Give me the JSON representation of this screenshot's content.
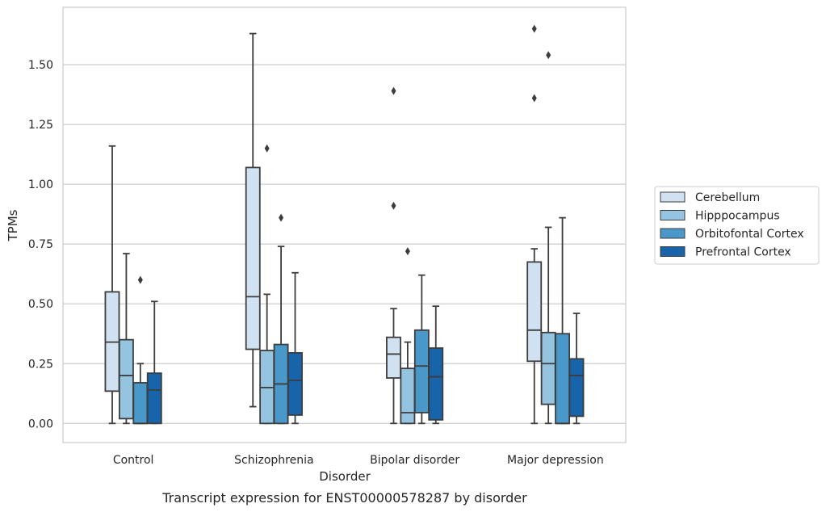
{
  "caption": "Transcript expression for ENST00000578287 by disorder",
  "chart_data": {
    "type": "boxplot",
    "xlabel": "Disorder",
    "ylabel": "TPMs",
    "ylim": [
      -0.08,
      1.74
    ],
    "yticks": [
      0.0,
      0.25,
      0.5,
      0.75,
      1.0,
      1.25,
      1.5
    ],
    "ytick_labels": [
      "0.00",
      "0.25",
      "0.50",
      "0.75",
      "1.00",
      "1.25",
      "1.50"
    ],
    "grid": "horizontal",
    "legend_position": "right",
    "categories": [
      "Control",
      "Schizophrenia",
      "Bipolar disorder",
      "Major depression"
    ],
    "series": [
      {
        "name": "Cerebellum",
        "color": "#d0e1f2",
        "boxes": [
          {
            "whislo": 0.0,
            "q1": 0.135,
            "med": 0.34,
            "q3": 0.55,
            "whishi": 1.16,
            "fliers": []
          },
          {
            "whislo": 0.07,
            "q1": 0.31,
            "med": 0.53,
            "q3": 1.07,
            "whishi": 1.63,
            "fliers": []
          },
          {
            "whislo": 0.0,
            "q1": 0.19,
            "med": 0.29,
            "q3": 0.36,
            "whishi": 0.48,
            "fliers": [
              0.91,
              1.39
            ]
          },
          {
            "whislo": 0.0,
            "q1": 0.26,
            "med": 0.39,
            "q3": 0.675,
            "whishi": 0.73,
            "fliers": [
              1.36,
              1.65
            ]
          }
        ]
      },
      {
        "name": "Hipppocampus",
        "color": "#94c4df",
        "boxes": [
          {
            "whislo": 0.0,
            "q1": 0.02,
            "med": 0.2,
            "q3": 0.35,
            "whishi": 0.71,
            "fliers": []
          },
          {
            "whislo": 0.0,
            "q1": 0.0,
            "med": 0.15,
            "q3": 0.305,
            "whishi": 0.54,
            "fliers": [
              1.15
            ]
          },
          {
            "whislo": 0.0,
            "q1": 0.0,
            "med": 0.045,
            "q3": 0.23,
            "whishi": 0.34,
            "fliers": [
              0.72
            ]
          },
          {
            "whislo": 0.0,
            "q1": 0.08,
            "med": 0.25,
            "q3": 0.38,
            "whishi": 0.82,
            "fliers": [
              1.54
            ]
          }
        ]
      },
      {
        "name": "Orbitofontal Cortex",
        "color": "#4a98c9",
        "boxes": [
          {
            "whislo": 0.0,
            "q1": 0.0,
            "med": 0.0,
            "q3": 0.17,
            "whishi": 0.25,
            "fliers": [
              0.6
            ]
          },
          {
            "whislo": 0.0,
            "q1": 0.0,
            "med": 0.165,
            "q3": 0.33,
            "whishi": 0.74,
            "fliers": [
              0.86
            ]
          },
          {
            "whislo": 0.0,
            "q1": 0.045,
            "med": 0.24,
            "q3": 0.39,
            "whishi": 0.62,
            "fliers": []
          },
          {
            "whislo": 0.0,
            "q1": 0.0,
            "med": 0.0,
            "q3": 0.375,
            "whishi": 0.86,
            "fliers": []
          }
        ]
      },
      {
        "name": "Prefrontal Cortex",
        "color": "#1764ab",
        "boxes": [
          {
            "whislo": 0.0,
            "q1": 0.0,
            "med": 0.14,
            "q3": 0.21,
            "whishi": 0.51,
            "fliers": []
          },
          {
            "whislo": 0.0,
            "q1": 0.035,
            "med": 0.18,
            "q3": 0.295,
            "whishi": 0.63,
            "fliers": []
          },
          {
            "whislo": 0.0,
            "q1": 0.015,
            "med": 0.195,
            "q3": 0.315,
            "whishi": 0.49,
            "fliers": []
          },
          {
            "whislo": 0.0,
            "q1": 0.03,
            "med": 0.2,
            "q3": 0.27,
            "whishi": 0.46,
            "fliers": []
          }
        ]
      }
    ]
  }
}
